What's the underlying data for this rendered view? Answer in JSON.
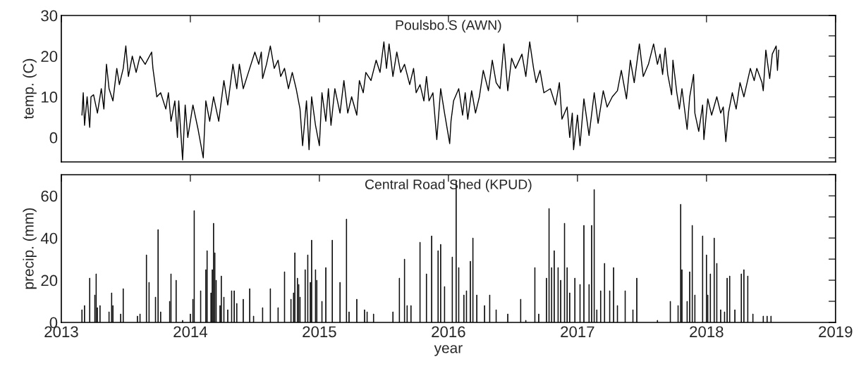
{
  "chart_data": [
    {
      "type": "line",
      "title": "Poulsbo.S (AWN)",
      "ylabel": "temp. (C)",
      "xlim": [
        2013,
        2019
      ],
      "xticks": [
        {
          "value": 2013,
          "label": null
        },
        {
          "value": 2014,
          "label": null
        },
        {
          "value": 2015,
          "label": null
        },
        {
          "value": 2016,
          "label": null
        },
        {
          "value": 2017,
          "label": null
        },
        {
          "value": 2018,
          "label": null
        },
        {
          "value": 2019,
          "label": null
        }
      ],
      "ylim": [
        -6,
        30
      ],
      "yticks": [
        {
          "value": -5,
          "label": null
        },
        0,
        {
          "value": 5,
          "label": null
        },
        10,
        {
          "value": 15,
          "label": null
        },
        20,
        {
          "value": 25,
          "label": null
        },
        30
      ],
      "tick_labels": "y",
      "grid": false,
      "marker": "none",
      "line_style": "solid",
      "series": [
        {
          "color": "#000000",
          "x": [
            2013.16,
            2013.17,
            2013.18,
            2013.2,
            2013.22,
            2013.23,
            2013.25,
            2013.28,
            2013.31,
            2013.33,
            2013.35,
            2013.37,
            2013.4,
            2013.43,
            2013.45,
            2013.48,
            2013.5,
            2013.52,
            2013.55,
            2013.58,
            2013.61,
            2013.65,
            2013.7,
            2013.71,
            2013.74,
            2013.77,
            2013.81,
            2013.83,
            2013.85,
            2013.88,
            2013.9,
            2013.91,
            2013.94,
            2013.96,
            2013.98,
            2014.02,
            2014.06,
            2014.1,
            2014.12,
            2014.15,
            2014.18,
            2014.22,
            2014.26,
            2014.29,
            2014.33,
            2014.36,
            2014.38,
            2014.41,
            2014.45,
            2014.5,
            2014.53,
            2014.55,
            2014.56,
            2014.59,
            2014.62,
            2014.65,
            2014.68,
            2014.7,
            2014.73,
            2014.76,
            2014.79,
            2014.82,
            2014.85,
            2014.87,
            2014.9,
            2014.92,
            2014.94,
            2014.97,
            2015.0,
            2015.02,
            2015.05,
            2015.07,
            2015.09,
            2015.12,
            2015.16,
            2015.19,
            2015.22,
            2015.25,
            2015.29,
            2015.31,
            2015.34,
            2015.36,
            2015.4,
            2015.44,
            2015.47,
            2015.5,
            2015.52,
            2015.54,
            2015.57,
            2015.6,
            2015.63,
            2015.66,
            2015.7,
            2015.73,
            2015.75,
            2015.78,
            2015.81,
            2015.83,
            2015.85,
            2015.88,
            2015.91,
            2015.94,
            2015.97,
            2016.01,
            2016.02,
            2016.04,
            2016.08,
            2016.11,
            2016.13,
            2016.15,
            2016.18,
            2016.21,
            2016.24,
            2016.27,
            2016.31,
            2016.34,
            2016.37,
            2016.4,
            2016.43,
            2016.46,
            2016.49,
            2016.52,
            2016.57,
            2016.6,
            2016.63,
            2016.66,
            2016.68,
            2016.71,
            2016.74,
            2016.79,
            2016.83,
            2016.86,
            2016.88,
            2016.92,
            2016.94,
            2016.96,
            2016.97,
            2017.0,
            2017.02,
            2017.05,
            2017.09,
            2017.13,
            2017.16,
            2017.2,
            2017.23,
            2017.27,
            2017.31,
            2017.34,
            2017.38,
            2017.41,
            2017.44,
            2017.48,
            2017.51,
            2017.55,
            2017.59,
            2017.62,
            2017.64,
            2017.66,
            2017.68,
            2017.7,
            2017.73,
            2017.74,
            2017.77,
            2017.79,
            2017.81,
            2017.85,
            2017.87,
            2017.9,
            2017.91,
            2017.94,
            2017.97,
            2017.98,
            2018.01,
            2018.04,
            2018.08,
            2018.11,
            2018.13,
            2018.15,
            2018.17,
            2018.2,
            2018.23,
            2018.26,
            2018.29,
            2018.34,
            2018.37,
            2018.39,
            2018.43,
            2018.44,
            2018.46,
            2018.49,
            2018.51,
            2018.54,
            2018.55,
            2018.56
          ],
          "values": [
            5.5,
            11,
            3,
            10,
            2.5,
            10,
            10.5,
            6,
            12,
            7,
            18,
            12,
            9,
            17,
            13,
            17,
            22.5,
            15,
            20,
            16,
            20,
            18,
            21,
            17,
            10,
            11,
            7,
            11,
            4,
            9,
            0,
            9,
            -5.5,
            8,
            0,
            8,
            2,
            -5,
            9,
            4,
            10,
            4,
            14,
            8,
            18,
            12,
            18,
            12,
            16,
            21,
            18,
            21,
            14.5,
            18,
            22.5,
            17,
            19,
            15,
            17,
            12,
            16,
            12,
            7,
            -2,
            9,
            -3,
            10,
            3,
            -2,
            11,
            4,
            12,
            3,
            12,
            6,
            14,
            6,
            10,
            5.5,
            14,
            11,
            16,
            14,
            19,
            16,
            23.5,
            17,
            23,
            15,
            21,
            16,
            18,
            13,
            17,
            11,
            13,
            9,
            15,
            9,
            11,
            -0.5,
            12,
            6,
            -1.5,
            4,
            9,
            12,
            5.5,
            11,
            4.5,
            11.5,
            6,
            10,
            16.5,
            11.5,
            19,
            13.5,
            12,
            23,
            11.5,
            19.5,
            17,
            20.5,
            15,
            23.5,
            17,
            13.5,
            16.5,
            11,
            12,
            8,
            13.5,
            4.5,
            7.5,
            0,
            6,
            -3,
            5.5,
            -2,
            9.5,
            0.5,
            11,
            3.5,
            11.5,
            7.5,
            10,
            11.5,
            16.5,
            9.5,
            19,
            13.5,
            23,
            15,
            18,
            23,
            18,
            20.5,
            15.5,
            22,
            15.5,
            10.5,
            19,
            11,
            7,
            12,
            2,
            10,
            15.5,
            6,
            1.5,
            8,
            -0.5,
            9.5,
            5.5,
            10,
            6,
            7.5,
            -1,
            6,
            11,
            7,
            13.5,
            10,
            17,
            14,
            17,
            13.5,
            11.5,
            21.5,
            14.5,
            20.5,
            22.5,
            16.5,
            21.5
          ]
        }
      ]
    },
    {
      "type": "bar",
      "title": "Central Road Shed (KPUD)",
      "ylabel": "precip. (mm)",
      "xlabel": "year",
      "xlim": [
        2013,
        2019
      ],
      "xticks": [
        2013,
        2014,
        2015,
        2016,
        2017,
        2018,
        2019
      ],
      "ylim": [
        0,
        70
      ],
      "yticks": [
        0,
        {
          "value": 10,
          "label": null
        },
        20,
        {
          "value": 30,
          "label": null
        },
        40,
        {
          "value": 50,
          "label": null
        },
        60,
        {
          "value": 70,
          "label": null
        }
      ],
      "grid": false,
      "series": [
        {
          "color": "#000000",
          "x": [
            2013.16,
            2013.18,
            2013.22,
            2013.26,
            2013.27,
            2013.28,
            2013.3,
            2013.37,
            2013.39,
            2013.4,
            2013.46,
            2013.48,
            2013.59,
            2013.61,
            2013.66,
            2013.68,
            2013.73,
            2013.75,
            2013.77,
            2013.84,
            2013.85,
            2013.89,
            2013.94,
            2014.0,
            2014.02,
            2014.03,
            2014.08,
            2014.12,
            2014.13,
            2014.16,
            2014.17,
            2014.18,
            2014.19,
            2014.2,
            2014.23,
            2014.24,
            2014.26,
            2014.29,
            2014.32,
            2014.34,
            2014.36,
            2014.41,
            2014.46,
            2014.49,
            2014.56,
            2014.62,
            2014.68,
            2014.73,
            2014.78,
            2014.8,
            2014.81,
            2014.83,
            2014.84,
            2014.85,
            2014.89,
            2014.91,
            2014.93,
            2014.94,
            2014.97,
            2014.98,
            2015.02,
            2015.05,
            2015.1,
            2015.16,
            2015.21,
            2015.23,
            2015.29,
            2015.35,
            2015.37,
            2015.42,
            2015.57,
            2015.62,
            2015.66,
            2015.68,
            2015.71,
            2015.78,
            2015.83,
            2015.87,
            2015.92,
            2015.94,
            2015.97,
            2016.03,
            2016.06,
            2016.08,
            2016.12,
            2016.14,
            2016.17,
            2016.19,
            2016.22,
            2016.28,
            2016.32,
            2016.37,
            2016.46,
            2016.56,
            2016.6,
            2016.67,
            2016.7,
            2016.76,
            2016.78,
            2016.8,
            2016.82,
            2016.85,
            2016.87,
            2016.9,
            2016.92,
            2016.94,
            2016.98,
            2017.02,
            2017.05,
            2017.09,
            2017.11,
            2017.13,
            2017.15,
            2017.18,
            2017.21,
            2017.25,
            2017.28,
            2017.31,
            2017.37,
            2017.43,
            2017.46,
            2017.62,
            2017.72,
            2017.78,
            2017.8,
            2017.81,
            2017.85,
            2017.87,
            2017.89,
            2017.91,
            2017.97,
            2018.0,
            2018.01,
            2018.03,
            2018.06,
            2018.08,
            2018.11,
            2018.14,
            2018.16,
            2018.18,
            2018.22,
            2018.27,
            2018.29,
            2018.32,
            2018.36,
            2018.44,
            2018.47,
            2018.5
          ],
          "values": [
            6,
            8,
            21,
            13,
            23,
            7,
            8,
            5,
            14,
            8,
            4,
            16,
            3,
            4,
            32,
            19,
            12,
            44,
            5,
            10,
            23,
            20,
            1,
            4,
            11,
            53,
            15,
            25,
            34,
            14,
            25,
            47,
            33,
            20,
            8,
            22,
            12,
            6,
            15,
            15,
            9,
            11,
            16,
            3,
            7,
            16,
            7,
            24,
            11,
            14,
            33,
            21,
            18,
            12,
            25,
            32,
            19,
            39,
            25,
            20,
            10,
            26,
            39,
            19,
            49,
            5,
            11,
            6,
            5,
            4,
            5,
            21,
            30,
            8,
            8,
            38,
            23,
            41,
            34,
            37,
            17,
            31,
            67,
            26,
            13,
            15,
            29,
            40,
            13,
            8,
            13,
            6,
            4,
            11,
            1,
            26,
            4,
            21,
            54,
            26,
            34,
            26,
            20,
            47,
            26,
            14,
            21,
            18,
            46,
            18,
            46,
            63,
            6,
            15,
            28,
            15,
            26,
            8,
            15,
            6,
            21,
            1,
            10,
            8,
            56,
            25,
            10,
            24,
            46,
            13,
            41,
            32,
            13,
            23,
            40,
            28,
            6,
            5,
            21,
            22,
            6,
            23,
            25,
            22,
            4,
            3,
            3,
            3
          ]
        }
      ]
    }
  ]
}
